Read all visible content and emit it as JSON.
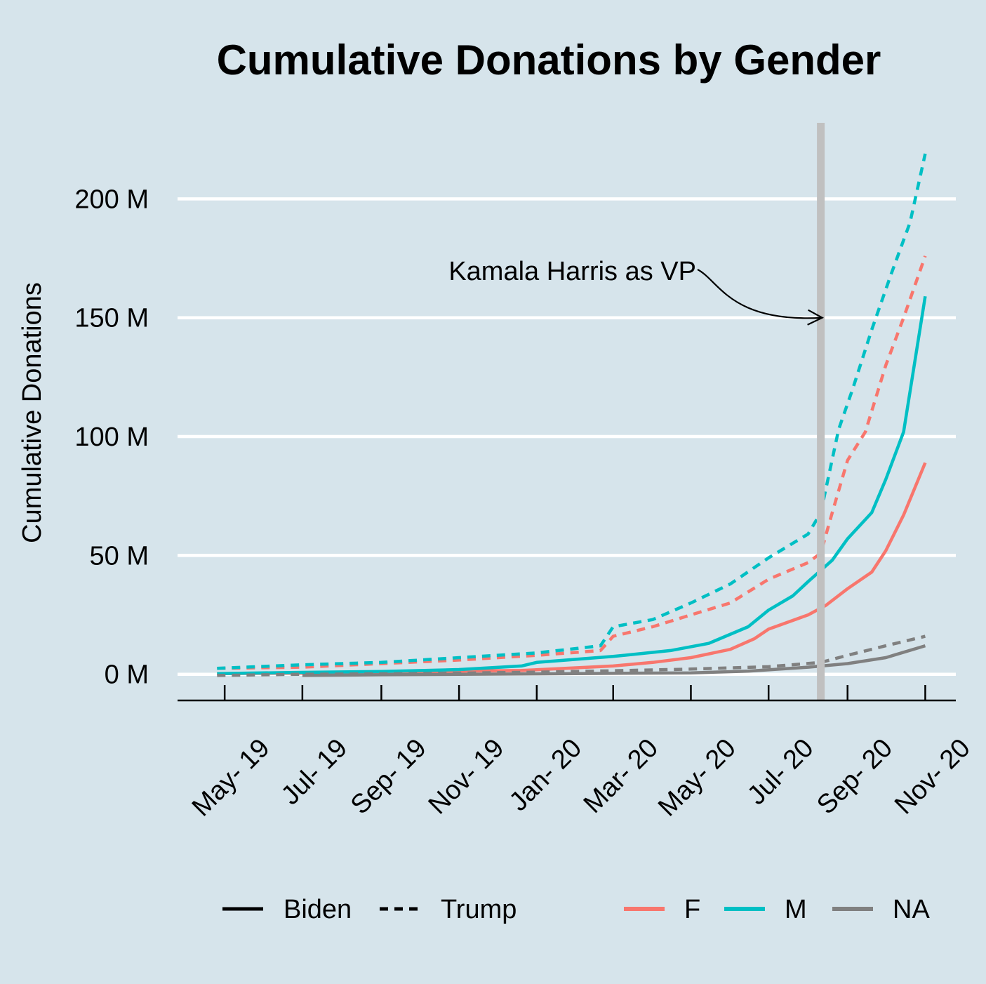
{
  "chart_data": {
    "type": "line",
    "title": "Cumulative Donations by Gender",
    "xlabel": "",
    "ylabel": "Cumulative Donations",
    "x_range": [
      "2019-03-25",
      "2020-11-25"
    ],
    "ylim": [
      -11,
      232
    ],
    "y_ticks": [
      0,
      50,
      100,
      150,
      200
    ],
    "y_tick_labels": [
      "0 M",
      "50 M",
      "100 M",
      "150 M",
      "200 M"
    ],
    "x_ticks": [
      "2019-05-01",
      "2019-07-01",
      "2019-09-01",
      "2019-11-01",
      "2020-01-01",
      "2020-03-01",
      "2020-05-01",
      "2020-07-01",
      "2020-09-01",
      "2020-11-01"
    ],
    "x_tick_labels": [
      "May- 19",
      "Jul- 19",
      "Sep- 19",
      "Nov- 19",
      "Jan- 20",
      "Mar- 20",
      "May- 20",
      "Jul- 20",
      "Sep- 20",
      "Nov- 20"
    ],
    "grid": "horizontal major only",
    "legend_position": "bottom",
    "legend": {
      "linetype": [
        {
          "label": "Biden",
          "dash": "solid"
        },
        {
          "label": "Trump",
          "dash": "dashed"
        }
      ],
      "color": [
        {
          "label": "F",
          "color": "#f8766d"
        },
        {
          "label": "M",
          "color": "#00bfc4"
        },
        {
          "label": "NA",
          "color": "#808080"
        }
      ]
    },
    "vline": {
      "x": "2020-08-11",
      "color": "#c0c0c0"
    },
    "annotation": {
      "text": "Kamala Harris as VP",
      "x": "2020-08-11",
      "y": 150
    },
    "series": [
      {
        "candidate": "Biden",
        "gender": "F",
        "color": "#f8766d",
        "dash": "solid",
        "points": [
          [
            "2019-04-25",
            0.3
          ],
          [
            "2019-07-01",
            0.5
          ],
          [
            "2019-09-01",
            0.9
          ],
          [
            "2019-11-01",
            1.3
          ],
          [
            "2019-12-20",
            1.6
          ],
          [
            "2020-01-15",
            2.3
          ],
          [
            "2020-03-01",
            3.5
          ],
          [
            "2020-04-01",
            5
          ],
          [
            "2020-05-01",
            7
          ],
          [
            "2020-06-01",
            10.5
          ],
          [
            "2020-06-20",
            15
          ],
          [
            "2020-07-01",
            19
          ],
          [
            "2020-08-01",
            25
          ],
          [
            "2020-08-15",
            29
          ],
          [
            "2020-09-01",
            36
          ],
          [
            "2020-09-20",
            43
          ],
          [
            "2020-10-01",
            52
          ],
          [
            "2020-10-15",
            67
          ],
          [
            "2020-11-01",
            89
          ]
        ]
      },
      {
        "candidate": "Biden",
        "gender": "M",
        "color": "#00bfc4",
        "dash": "solid",
        "points": [
          [
            "2019-04-25",
            0.3
          ],
          [
            "2019-07-01",
            0.8
          ],
          [
            "2019-09-01",
            1.2
          ],
          [
            "2019-11-01",
            2
          ],
          [
            "2019-12-20",
            3.5
          ],
          [
            "2020-01-01",
            5
          ],
          [
            "2020-03-01",
            7.5
          ],
          [
            "2020-04-15",
            10
          ],
          [
            "2020-05-15",
            13
          ],
          [
            "2020-06-15",
            20
          ],
          [
            "2020-07-01",
            27
          ],
          [
            "2020-07-20",
            33
          ],
          [
            "2020-08-01",
            39
          ],
          [
            "2020-08-20",
            48
          ],
          [
            "2020-09-01",
            57
          ],
          [
            "2020-09-20",
            68
          ],
          [
            "2020-10-01",
            82
          ],
          [
            "2020-10-15",
            102
          ],
          [
            "2020-11-01",
            159
          ]
        ]
      },
      {
        "candidate": "Biden",
        "gender": "NA",
        "color": "#808080",
        "dash": "solid",
        "points": [
          [
            "2019-07-01",
            -0.5
          ],
          [
            "2019-09-01",
            -0.2
          ],
          [
            "2019-11-01",
            0
          ],
          [
            "2020-01-01",
            0.2
          ],
          [
            "2020-03-01",
            0.4
          ],
          [
            "2020-05-01",
            0.6
          ],
          [
            "2020-06-15",
            1.3
          ],
          [
            "2020-08-01",
            3
          ],
          [
            "2020-09-01",
            4.5
          ],
          [
            "2020-10-01",
            7
          ],
          [
            "2020-11-01",
            12
          ]
        ]
      },
      {
        "candidate": "Trump",
        "gender": "F",
        "color": "#f8766d",
        "dash": "dashed",
        "points": [
          [
            "2019-04-25",
            2.5
          ],
          [
            "2019-07-01",
            3
          ],
          [
            "2019-09-01",
            4.5
          ],
          [
            "2019-11-01",
            6
          ],
          [
            "2020-01-01",
            8
          ],
          [
            "2020-02-20",
            10
          ],
          [
            "2020-03-01",
            16
          ],
          [
            "2020-04-01",
            20
          ],
          [
            "2020-05-01",
            25
          ],
          [
            "2020-06-01",
            30
          ],
          [
            "2020-07-01",
            40
          ],
          [
            "2020-08-01",
            47
          ],
          [
            "2020-08-11",
            51
          ],
          [
            "2020-08-20",
            68
          ],
          [
            "2020-09-01",
            90
          ],
          [
            "2020-09-15",
            102
          ],
          [
            "2020-10-01",
            130
          ],
          [
            "2020-10-15",
            150
          ],
          [
            "2020-11-01",
            176
          ]
        ]
      },
      {
        "candidate": "Trump",
        "gender": "M",
        "color": "#00bfc4",
        "dash": "dashed",
        "points": [
          [
            "2019-04-25",
            2.5
          ],
          [
            "2019-07-01",
            4
          ],
          [
            "2019-09-01",
            5
          ],
          [
            "2019-11-01",
            7
          ],
          [
            "2020-01-01",
            9
          ],
          [
            "2020-02-20",
            12
          ],
          [
            "2020-03-01",
            20
          ],
          [
            "2020-04-01",
            23
          ],
          [
            "2020-05-01",
            30
          ],
          [
            "2020-06-01",
            38
          ],
          [
            "2020-07-01",
            49
          ],
          [
            "2020-08-01",
            59
          ],
          [
            "2020-08-11",
            68
          ],
          [
            "2020-08-25",
            103
          ],
          [
            "2020-09-05",
            120
          ],
          [
            "2020-09-20",
            145
          ],
          [
            "2020-10-05",
            168
          ],
          [
            "2020-10-20",
            190
          ],
          [
            "2020-11-01",
            219
          ]
        ]
      },
      {
        "candidate": "Trump",
        "gender": "NA",
        "color": "#808080",
        "dash": "dashed",
        "points": [
          [
            "2019-04-25",
            -0.5
          ],
          [
            "2019-07-01",
            0
          ],
          [
            "2019-09-01",
            0.2
          ],
          [
            "2019-11-01",
            0.5
          ],
          [
            "2020-01-01",
            0.9
          ],
          [
            "2020-03-01",
            1.5
          ],
          [
            "2020-05-01",
            2.2
          ],
          [
            "2020-07-01",
            3.2
          ],
          [
            "2020-08-11",
            5
          ],
          [
            "2020-09-01",
            8
          ],
          [
            "2020-10-01",
            12
          ],
          [
            "2020-11-01",
            16
          ]
        ]
      }
    ]
  }
}
